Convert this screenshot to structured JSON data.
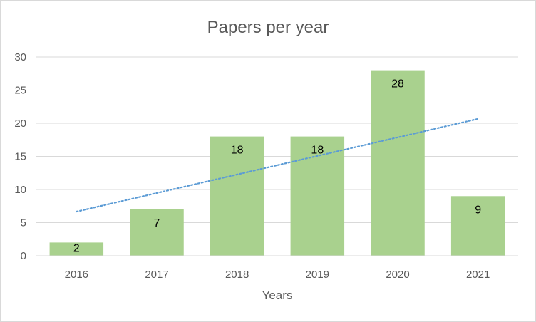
{
  "chart_data": {
    "type": "bar",
    "title": "Papers per year",
    "xlabel": "Years",
    "ylabel": "",
    "categories": [
      "2016",
      "2017",
      "2018",
      "2019",
      "2020",
      "2021"
    ],
    "values": [
      2,
      7,
      18,
      18,
      28,
      9
    ],
    "ylim": [
      0,
      30
    ],
    "yticks": [
      0,
      5,
      10,
      15,
      20,
      25,
      30
    ],
    "grid": true,
    "legend": "none",
    "data_labels": true,
    "trendline": {
      "type": "linear",
      "style": "dotted"
    },
    "colors": {
      "bar": "#a9d18e",
      "trendline": "#5b9bd5",
      "grid": "#d9d9d9",
      "text": "#595959"
    }
  }
}
